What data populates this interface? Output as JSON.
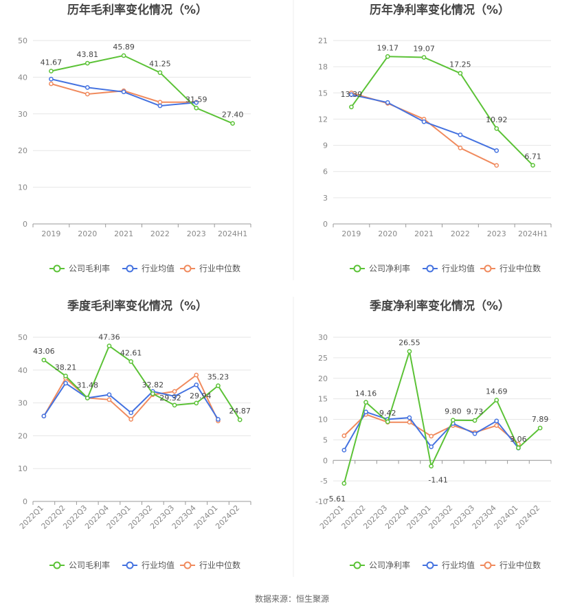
{
  "source": "数据来源：恒生聚源",
  "colors": {
    "company": "#5bc236",
    "avg": "#4472e0",
    "median": "#f08a5d",
    "grid": "#e6e6e6",
    "axis": "#999999"
  },
  "chart_data": [
    {
      "type": "line",
      "title": "历年毛利率变化情况（%）",
      "categories": [
        "2019",
        "2020",
        "2021",
        "2022",
        "2023",
        "2024H1"
      ],
      "ylim": [
        0,
        50
      ],
      "yticks": [
        0,
        10,
        20,
        30,
        40,
        50
      ],
      "rotate_labels": false,
      "legend": [
        "公司毛利率",
        "行业均值",
        "行业中位数"
      ],
      "series": [
        {
          "name": "公司毛利率",
          "values": [
            41.67,
            43.81,
            45.89,
            41.25,
            31.59,
            27.4
          ],
          "labels": [
            "41.67",
            "43.81",
            "45.89",
            "41.25",
            "31.59",
            "27.40"
          ]
        },
        {
          "name": "行业均值",
          "values": [
            39.5,
            37.2,
            36.0,
            32.2,
            33.1,
            null
          ]
        },
        {
          "name": "行业中位数",
          "values": [
            38.2,
            35.4,
            36.3,
            33.2,
            33.2,
            null
          ]
        }
      ]
    },
    {
      "type": "line",
      "title": "历年净利率变化情况（%）",
      "categories": [
        "2019",
        "2020",
        "2021",
        "2022",
        "2023",
        "2024H1"
      ],
      "ylim": [
        0,
        21
      ],
      "yticks": [
        0,
        3,
        6,
        9,
        12,
        15,
        18,
        21
      ],
      "rotate_labels": false,
      "legend": [
        "公司净利率",
        "行业均值",
        "行业中位数"
      ],
      "series": [
        {
          "name": "公司净利率",
          "values": [
            13.39,
            19.17,
            19.07,
            17.25,
            10.92,
            6.71
          ],
          "labels": [
            "13.39",
            "19.17",
            "19.07",
            "17.25",
            "10.92",
            "6.71"
          ]
        },
        {
          "name": "行业均值",
          "values": [
            14.8,
            13.9,
            11.7,
            10.2,
            8.4,
            null
          ]
        },
        {
          "name": "行业中位数",
          "values": [
            15.0,
            13.8,
            12.0,
            8.7,
            6.7,
            null
          ]
        }
      ]
    },
    {
      "type": "line",
      "title": "季度毛利率变化情况（%）",
      "categories": [
        "2022Q1",
        "2022Q2",
        "2022Q3",
        "2022Q4",
        "2023Q1",
        "2023Q2",
        "2023Q3",
        "2023Q4",
        "2024Q1",
        "2024Q2"
      ],
      "ylim": [
        0,
        50
      ],
      "yticks": [
        0,
        10,
        20,
        30,
        40,
        50
      ],
      "rotate_labels": true,
      "legend": [
        "公司毛利率",
        "行业均值",
        "行业中位数"
      ],
      "series": [
        {
          "name": "公司毛利率",
          "values": [
            43.06,
            38.21,
            31.48,
            47.36,
            42.61,
            32.82,
            29.32,
            29.94,
            35.23,
            24.87
          ],
          "labels": [
            "43.06",
            "38.21",
            "31.48",
            "47.36",
            "42.61",
            "32.82",
            "29.32",
            "29.94",
            "35.23",
            "24.87"
          ]
        },
        {
          "name": "行业均值",
          "values": [
            26.0,
            36.0,
            31.5,
            32.5,
            27.0,
            33.5,
            32.0,
            35.5,
            25.0,
            null
          ]
        },
        {
          "name": "行业中位数",
          "values": [
            26.0,
            37.5,
            31.5,
            31.0,
            25.0,
            32.5,
            33.5,
            38.5,
            24.5,
            null
          ]
        }
      ]
    },
    {
      "type": "line",
      "title": "季度净利率变化情况（%）",
      "categories": [
        "2022Q1",
        "2022Q2",
        "2022Q3",
        "2022Q4",
        "2023Q1",
        "2023Q2",
        "2023Q3",
        "2023Q4",
        "2024Q1",
        "2024Q2"
      ],
      "ylim": [
        -10,
        30
      ],
      "yticks": [
        -10,
        -5,
        0,
        5,
        10,
        15,
        20,
        25,
        30
      ],
      "rotate_labels": true,
      "legend": [
        "公司净利率",
        "行业均值",
        "行业中位数"
      ],
      "series": [
        {
          "name": "公司净利率",
          "values": [
            -5.61,
            14.16,
            9.42,
            26.55,
            -1.41,
            9.8,
            9.73,
            14.69,
            3.06,
            7.89
          ],
          "labels": [
            "-5.61",
            "14.16",
            "9.42",
            "26.55",
            "-1.41",
            "9.80",
            "9.73",
            "14.69",
            "3.06",
            "7.89"
          ]
        },
        {
          "name": "行业均值",
          "values": [
            2.5,
            11.8,
            10.0,
            10.4,
            3.3,
            9.0,
            6.5,
            9.6,
            3.0,
            null
          ]
        },
        {
          "name": "行业中位数",
          "values": [
            6.0,
            11.2,
            9.3,
            9.3,
            5.9,
            8.5,
            6.8,
            8.5,
            4.0,
            null
          ]
        }
      ]
    }
  ]
}
